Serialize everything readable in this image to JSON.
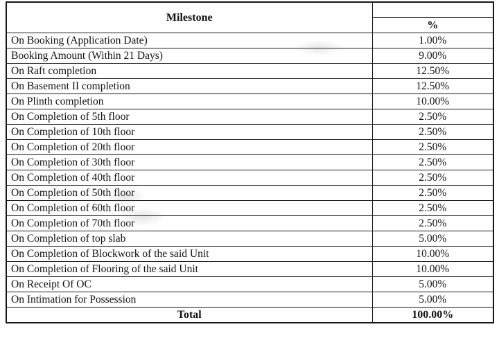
{
  "colors": {
    "background": "#ffffff",
    "border": "#1c1c1c",
    "text": "#121212"
  },
  "table": {
    "header": {
      "milestone_label": "Milestone",
      "percent_label": "%"
    },
    "rows": [
      {
        "milestone": "On Booking (Application Date)",
        "percent": "1.00%"
      },
      {
        "milestone": "Booking Amount (Within 21 Days)",
        "percent": "9.00%"
      },
      {
        "milestone": "On Raft completion",
        "percent": "12.50%"
      },
      {
        "milestone": "On Basement II completion",
        "percent": "12.50%"
      },
      {
        "milestone": "On Plinth completion",
        "percent": "10.00%"
      },
      {
        "milestone": "On Completion of 5th floor",
        "percent": "2.50%"
      },
      {
        "milestone": "On Completion of 10th floor",
        "percent": "2.50%"
      },
      {
        "milestone": "On Completion of 20th floor",
        "percent": "2.50%"
      },
      {
        "milestone": "On Completion of 30th floor",
        "percent": "2.50%"
      },
      {
        "milestone": "On Completion of 40th floor",
        "percent": "2.50%"
      },
      {
        "milestone": "On Completion of 50th floor",
        "percent": "2.50%"
      },
      {
        "milestone": "On Completion of 60th floor",
        "percent": "2.50%"
      },
      {
        "milestone": "On Completion of 70th floor",
        "percent": "2.50%"
      },
      {
        "milestone": "On Completion of top slab",
        "percent": "5.00%"
      },
      {
        "milestone": "On Completion of Blockwork of the said Unit",
        "percent": "10.00%"
      },
      {
        "milestone": "On Completion of Flooring of the said Unit",
        "percent": "10.00%"
      },
      {
        "milestone": "On Receipt Of OC",
        "percent": "5.00%"
      },
      {
        "milestone": "On Intimation for Possession",
        "percent": "5.00%"
      }
    ],
    "total": {
      "label": "Total",
      "percent": "100.00%"
    }
  }
}
